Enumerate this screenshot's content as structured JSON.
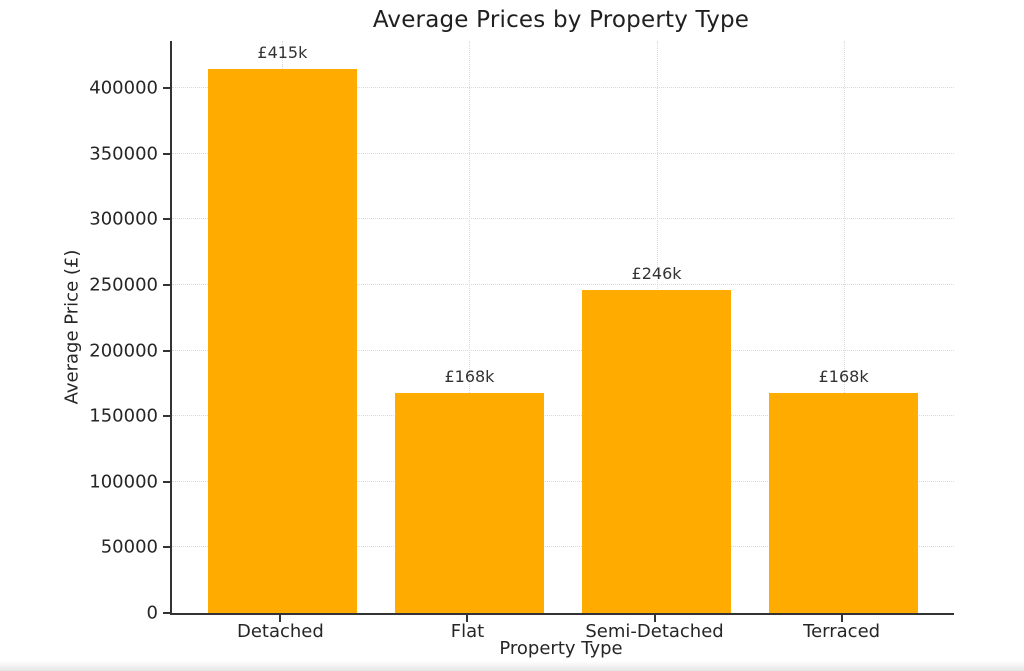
{
  "chart_data": {
    "type": "bar",
    "title": "Average Prices by Property Type",
    "xlabel": "Property Type",
    "ylabel": "Average Price (£)",
    "categories": [
      "Detached",
      "Flat",
      "Semi-Detached",
      "Terraced"
    ],
    "values": [
      415000,
      168000,
      246000,
      168000
    ],
    "bar_labels": [
      "£415k",
      "£168k",
      "£246k",
      "£168k"
    ],
    "ylim": [
      0,
      436000
    ],
    "xlim": [
      -0.59,
      3.59
    ],
    "yticks": [
      0,
      50000,
      100000,
      150000,
      200000,
      250000,
      300000,
      350000,
      400000
    ],
    "ytick_labels": [
      "0",
      "50000",
      "100000",
      "150000",
      "200000",
      "250000",
      "300000",
      "350000",
      "400000"
    ],
    "bar_width_fraction": 0.8,
    "grid": true,
    "legend": null,
    "colors": {
      "bar": "#ffab00",
      "text": "#262626",
      "spine": "#333333",
      "grid": "#d9d9d9",
      "background": "#ffffff"
    }
  }
}
